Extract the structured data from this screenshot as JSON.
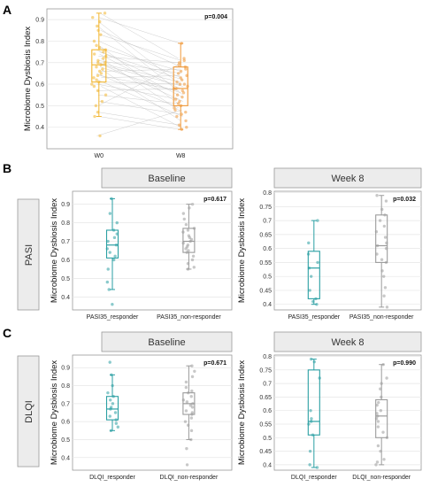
{
  "colors": {
    "w0": "#f2b630",
    "w8": "#ef9838",
    "responder": "#2a9fa3",
    "non_responder": "#9b9b9b",
    "paired_line": "#bdbdbd"
  },
  "panels": {
    "A": {
      "letter": "A"
    },
    "B": {
      "letter": "B",
      "row_label": "PASI"
    },
    "C": {
      "letter": "C",
      "row_label": "DLQI"
    }
  },
  "chart_data": [
    {
      "id": "A",
      "type": "box",
      "ylabel": "Microbiome Dysbiosis Index",
      "ylim": [
        0.3,
        0.95
      ],
      "yticks": [
        0.4,
        0.5,
        0.6,
        0.7,
        0.8,
        0.9
      ],
      "categories": [
        "W0",
        "W8"
      ],
      "p_label": "p=0.004",
      "paired": true,
      "boxes": [
        {
          "q1": 0.61,
          "median": 0.69,
          "q3": 0.76,
          "whisker_low": 0.45,
          "whisker_high": 0.93
        },
        {
          "q1": 0.5,
          "median": 0.58,
          "q3": 0.68,
          "whisker_low": 0.39,
          "whisker_high": 0.79
        }
      ],
      "points": [
        [
          0.93,
          0.91,
          0.89,
          0.87,
          0.85,
          0.83,
          0.8,
          0.78,
          0.77,
          0.76,
          0.75,
          0.74,
          0.73,
          0.72,
          0.71,
          0.7,
          0.7,
          0.69,
          0.68,
          0.67,
          0.66,
          0.65,
          0.64,
          0.63,
          0.62,
          0.61,
          0.6,
          0.59,
          0.57,
          0.55,
          0.52,
          0.5,
          0.47,
          0.45,
          0.36
        ],
        [
          0.72,
          0.79,
          0.6,
          0.55,
          0.68,
          0.71,
          0.63,
          0.5,
          0.66,
          0.58,
          0.62,
          0.54,
          0.7,
          0.47,
          0.65,
          0.52,
          0.61,
          0.59,
          0.56,
          0.43,
          0.67,
          0.49,
          0.57,
          0.64,
          0.45,
          0.6,
          0.53,
          0.4,
          0.58,
          0.51,
          0.46,
          0.69,
          0.41,
          0.39,
          0.48
        ]
      ]
    },
    {
      "id": "B-baseline",
      "type": "box",
      "strip_title": "Baseline",
      "ylabel": "Microbiome Dysbiosis Index",
      "ylim": [
        0.33,
        0.97
      ],
      "yticks": [
        0.4,
        0.5,
        0.6,
        0.7,
        0.8,
        0.9
      ],
      "categories": [
        "PASI35_responder",
        "PASI35_non-responder"
      ],
      "p_label": "p=0.617",
      "boxes": [
        {
          "q1": 0.61,
          "median": 0.68,
          "q3": 0.76,
          "whisker_low": 0.44,
          "whisker_high": 0.93
        },
        {
          "q1": 0.64,
          "median": 0.7,
          "q3": 0.77,
          "whisker_low": 0.55,
          "whisker_high": 0.9
        }
      ],
      "points": [
        [
          0.93,
          0.85,
          0.8,
          0.76,
          0.74,
          0.72,
          0.7,
          0.68,
          0.66,
          0.64,
          0.62,
          0.6,
          0.55,
          0.48,
          0.44,
          0.36
        ],
        [
          0.9,
          0.88,
          0.85,
          0.82,
          0.79,
          0.77,
          0.76,
          0.75,
          0.73,
          0.72,
          0.71,
          0.7,
          0.69,
          0.68,
          0.67,
          0.66,
          0.65,
          0.64,
          0.62,
          0.6,
          0.58,
          0.56,
          0.55
        ]
      ]
    },
    {
      "id": "B-week8",
      "type": "box",
      "strip_title": "Week 8",
      "ylabel": "Microbiome Dysbiosis Index",
      "ylim": [
        0.38,
        0.805
      ],
      "yticks": [
        0.4,
        0.45,
        0.5,
        0.55,
        0.6,
        0.65,
        0.7,
        0.75,
        0.8
      ],
      "categories": [
        "PASI35_responder",
        "PASI35_non-responder"
      ],
      "p_label": "p=0.032",
      "boxes": [
        {
          "q1": 0.42,
          "median": 0.53,
          "q3": 0.59,
          "whisker_low": 0.4,
          "whisker_high": 0.7
        },
        {
          "q1": 0.55,
          "median": 0.61,
          "q3": 0.72,
          "whisker_low": 0.39,
          "whisker_high": 0.79
        }
      ],
      "points": [
        [
          0.7,
          0.62,
          0.58,
          0.55,
          0.53,
          0.5,
          0.45,
          0.42,
          0.41,
          0.4
        ],
        [
          0.79,
          0.77,
          0.74,
          0.72,
          0.7,
          0.68,
          0.66,
          0.64,
          0.62,
          0.61,
          0.6,
          0.58,
          0.56,
          0.55,
          0.52,
          0.5,
          0.46,
          0.43,
          0.39
        ]
      ]
    },
    {
      "id": "C-baseline",
      "type": "box",
      "strip_title": "Baseline",
      "ylabel": "Microbiome Dysbiosis Index",
      "ylim": [
        0.33,
        0.97
      ],
      "yticks": [
        0.4,
        0.5,
        0.6,
        0.7,
        0.8,
        0.9
      ],
      "categories": [
        "DLQI_responder",
        "DLQI_non-responder"
      ],
      "p_label": "p=0.671",
      "boxes": [
        {
          "q1": 0.61,
          "median": 0.67,
          "q3": 0.74,
          "whisker_low": 0.55,
          "whisker_high": 0.86
        },
        {
          "q1": 0.64,
          "median": 0.7,
          "q3": 0.76,
          "whisker_low": 0.5,
          "whisker_high": 0.91
        }
      ],
      "points": [
        [
          0.93,
          0.86,
          0.8,
          0.76,
          0.74,
          0.72,
          0.7,
          0.68,
          0.67,
          0.65,
          0.63,
          0.61,
          0.59,
          0.57,
          0.55
        ],
        [
          0.91,
          0.88,
          0.85,
          0.82,
          0.79,
          0.77,
          0.76,
          0.74,
          0.72,
          0.71,
          0.7,
          0.69,
          0.68,
          0.66,
          0.65,
          0.64,
          0.62,
          0.6,
          0.58,
          0.55,
          0.5,
          0.45,
          0.36
        ]
      ]
    },
    {
      "id": "C-week8",
      "type": "box",
      "strip_title": "Week 8",
      "ylabel": "Microbiome Dysbiosis Index",
      "ylim": [
        0.38,
        0.805
      ],
      "yticks": [
        0.4,
        0.45,
        0.5,
        0.55,
        0.6,
        0.65,
        0.7,
        0.75,
        0.8
      ],
      "categories": [
        "DLQI_responder",
        "DLQI_non-responder"
      ],
      "p_label": "p=0.990",
      "boxes": [
        {
          "q1": 0.51,
          "median": 0.56,
          "q3": 0.75,
          "whisker_low": 0.39,
          "whisker_high": 0.79
        },
        {
          "q1": 0.5,
          "median": 0.58,
          "q3": 0.64,
          "whisker_low": 0.4,
          "whisker_high": 0.77
        }
      ],
      "points": [
        [
          0.79,
          0.78,
          0.72,
          0.6,
          0.57,
          0.56,
          0.55,
          0.51,
          0.45,
          0.4,
          0.39
        ],
        [
          0.77,
          0.72,
          0.7,
          0.68,
          0.65,
          0.63,
          0.62,
          0.6,
          0.59,
          0.58,
          0.57,
          0.56,
          0.54,
          0.52,
          0.5,
          0.47,
          0.45,
          0.42,
          0.41,
          0.4
        ]
      ]
    }
  ]
}
